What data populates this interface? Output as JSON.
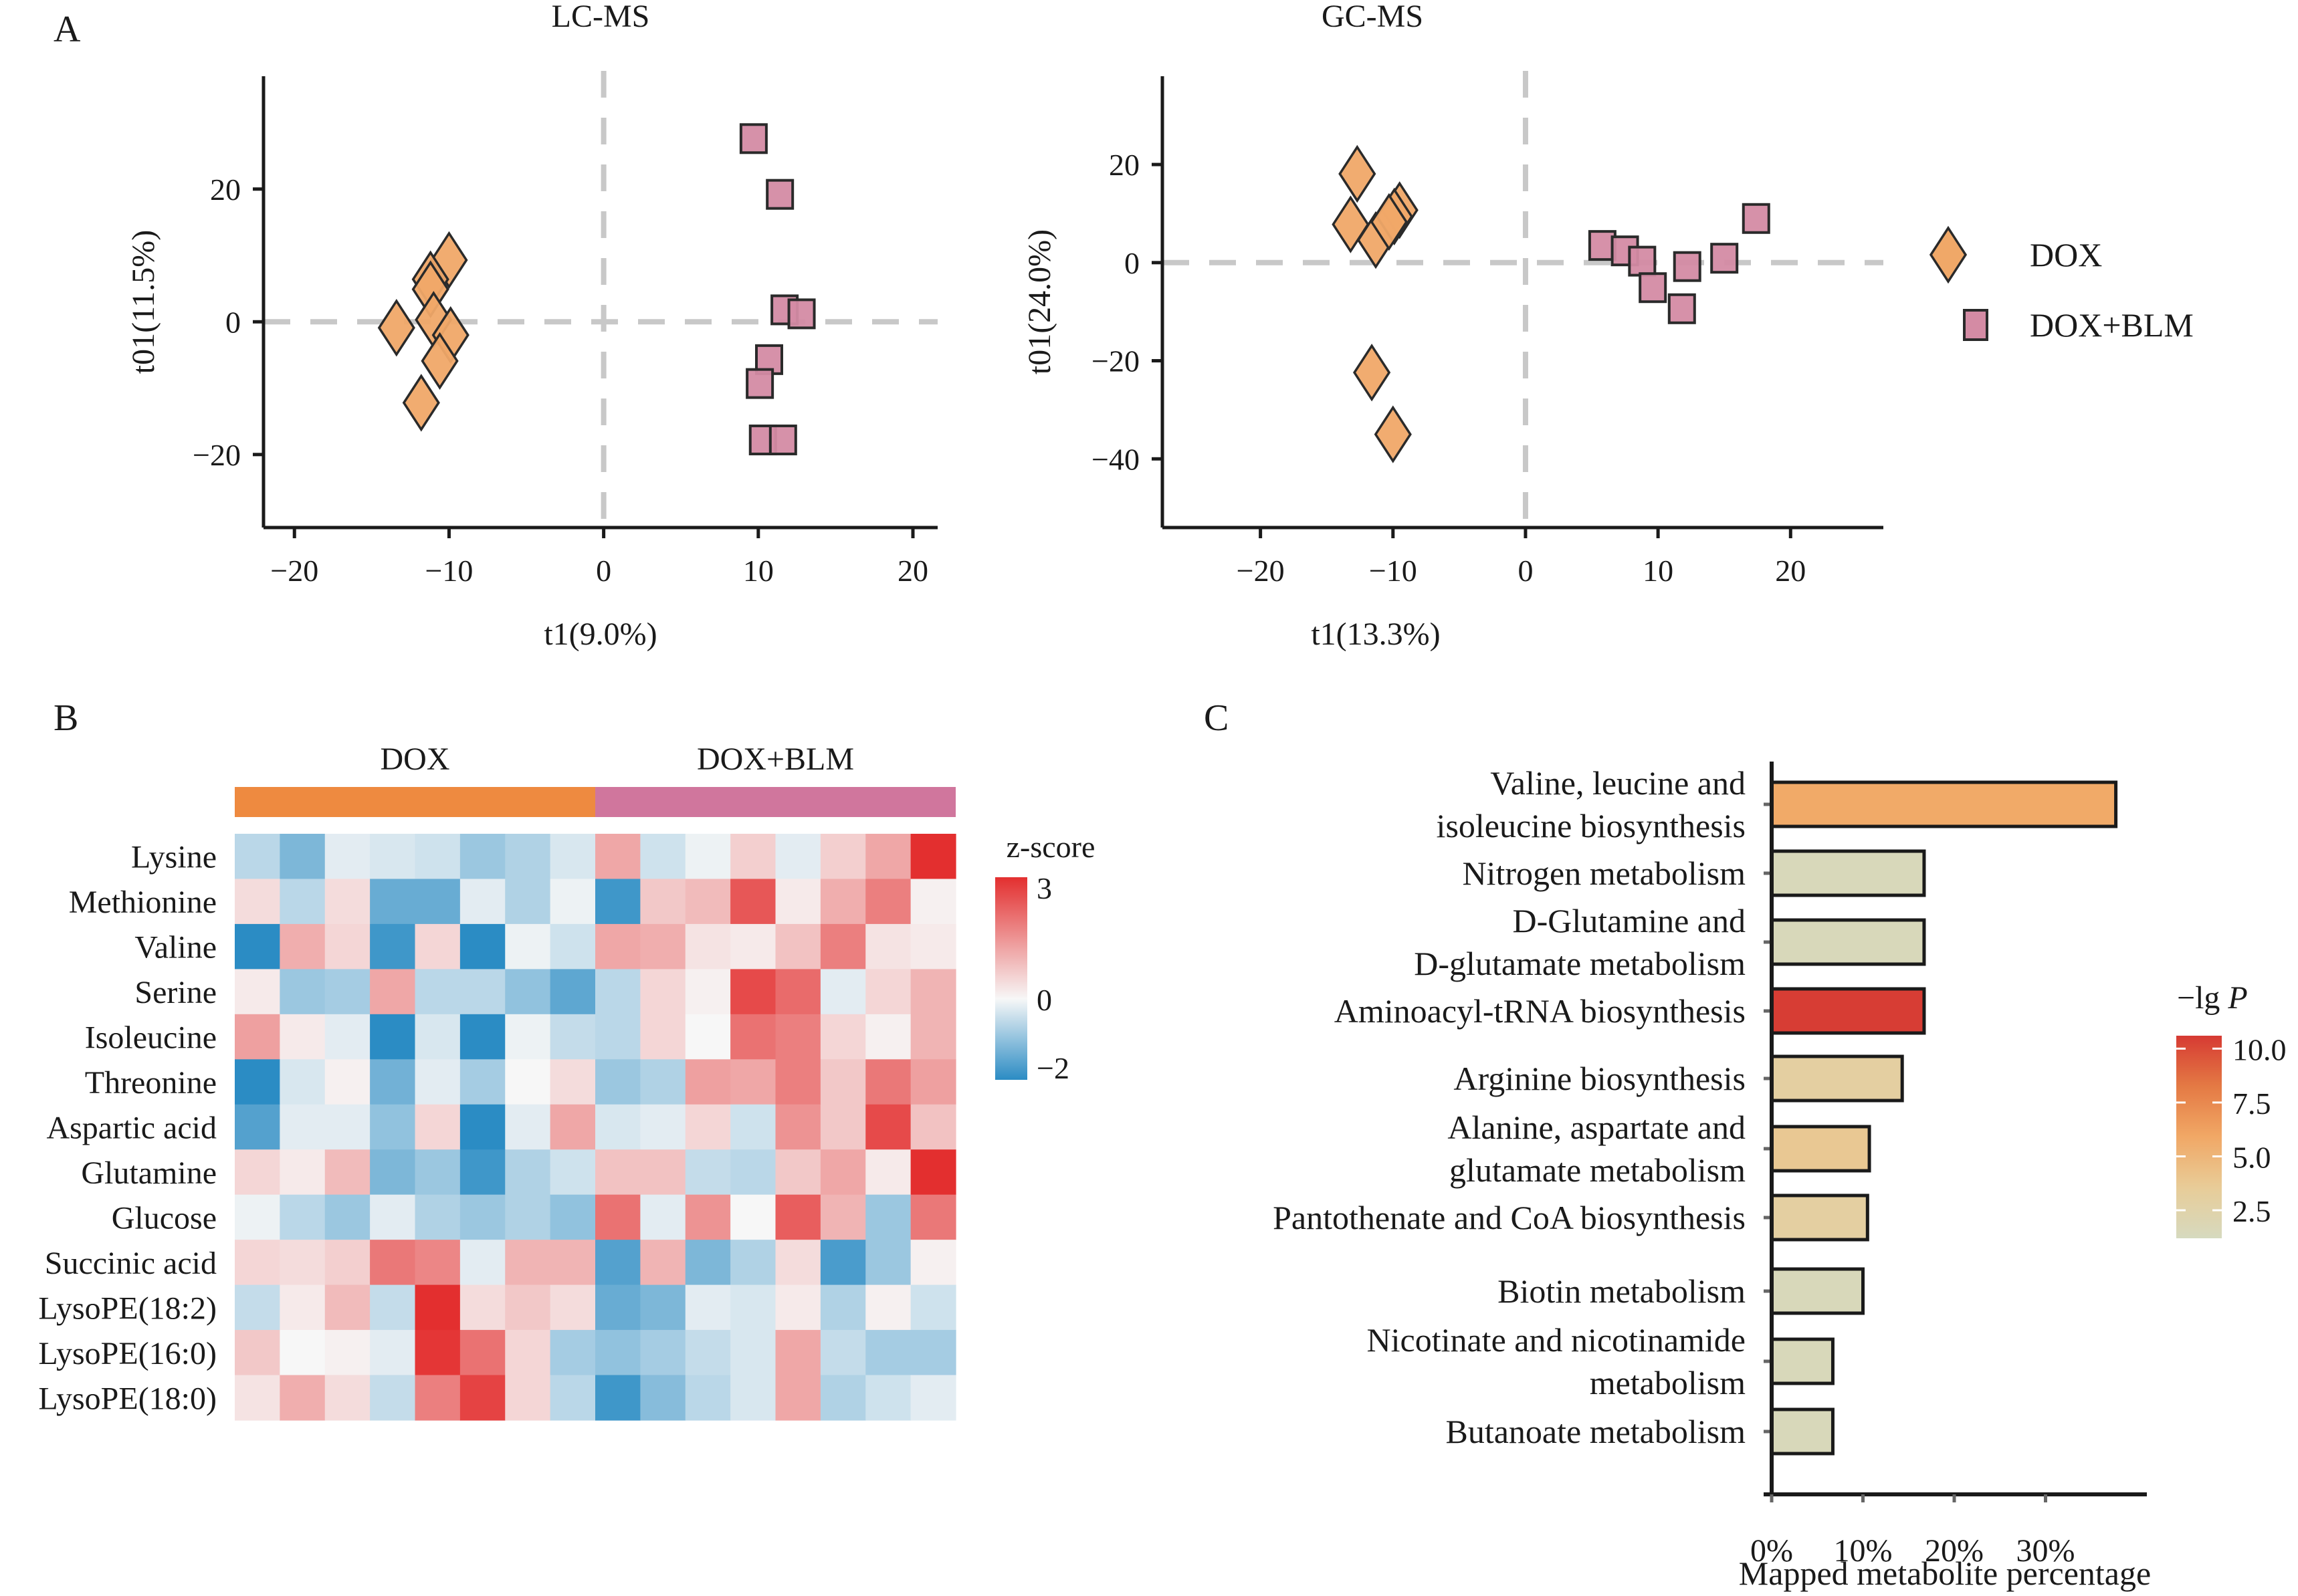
{
  "panels": {
    "A": "A",
    "B": "B",
    "C": "C"
  },
  "chart_data": [
    {
      "id": "lcms",
      "type": "scatter",
      "title": "LC-MS",
      "xlabel": "t1(9.0%)",
      "ylabel": "t01(11.5%)",
      "xlim": [
        -22,
        21.6
      ],
      "ylim": [
        -31,
        37
      ],
      "xticks": [
        -20,
        -10,
        0,
        10,
        20
      ],
      "yticks": [
        -20,
        0,
        20
      ],
      "xtick_labels": [
        "−20",
        "−10",
        "0",
        "10",
        "20"
      ],
      "ytick_labels": [
        "−20",
        "0",
        "20"
      ],
      "reference_lines": {
        "x": 0,
        "y": 0,
        "style": "dashed"
      },
      "series": [
        {
          "name": "DOX",
          "marker": "diamond",
          "color": "#f0a868",
          "points": [
            [
              -10.0,
              9.3
            ],
            [
              -11.2,
              6.4
            ],
            [
              -11.2,
              4.9
            ],
            [
              -13.4,
              -0.9
            ],
            [
              -11.0,
              0.3
            ],
            [
              -9.9,
              -2.0
            ],
            [
              -10.6,
              -5.9
            ],
            [
              -11.8,
              -12.2
            ]
          ]
        },
        {
          "name": "DOX+BLM",
          "marker": "square",
          "color": "#d48ba4",
          "points": [
            [
              9.7,
              27.6
            ],
            [
              11.4,
              19.2
            ],
            [
              11.7,
              1.8
            ],
            [
              12.8,
              1.2
            ],
            [
              10.7,
              -5.7
            ],
            [
              10.1,
              -9.3
            ],
            [
              10.3,
              -17.8
            ],
            [
              11.6,
              -17.8
            ]
          ]
        }
      ]
    },
    {
      "id": "gcms",
      "type": "scatter",
      "title": "GC-MS",
      "xlabel": "t1(13.3%)",
      "ylabel": "t01(24.0%)",
      "xlim": [
        -27.4,
        27.0
      ],
      "ylim": [
        -54,
        38
      ],
      "xticks": [
        -20,
        -10,
        0,
        10,
        20
      ],
      "yticks": [
        -40,
        -20,
        0,
        20
      ],
      "xtick_labels": [
        "−20",
        "−10",
        "0",
        "10",
        "20"
      ],
      "ytick_labels": [
        "−40",
        "−20",
        "0",
        "20"
      ],
      "reference_lines": {
        "x": 0,
        "y": 0,
        "style": "dashed"
      },
      "legend": {
        "position": "right",
        "entries": [
          {
            "label": "DOX",
            "marker": "diamond",
            "color": "#f0a868"
          },
          {
            "label": "DOX+BLM",
            "marker": "square",
            "color": "#d48ba4"
          }
        ]
      },
      "series": [
        {
          "name": "DOX",
          "marker": "diamond",
          "color": "#f0a868",
          "points": [
            [
              -12.7,
              18.1
            ],
            [
              -13.2,
              7.8
            ],
            [
              -11.3,
              4.6
            ],
            [
              -9.5,
              10.7
            ],
            [
              -9.9,
              9.4
            ],
            [
              -10.3,
              8.3
            ],
            [
              -11.6,
              -22.4
            ],
            [
              -10.0,
              -35.0
            ]
          ]
        },
        {
          "name": "DOX+BLM",
          "marker": "square",
          "color": "#d48ba4",
          "points": [
            [
              5.8,
              3.5
            ],
            [
              7.5,
              2.4
            ],
            [
              8.8,
              0.3
            ],
            [
              12.2,
              -0.8
            ],
            [
              9.6,
              -5.1
            ],
            [
              11.8,
              -9.4
            ],
            [
              15.0,
              0.9
            ],
            [
              17.4,
              9.0
            ]
          ]
        }
      ]
    },
    {
      "id": "heatmap",
      "type": "heatmap",
      "groups": [
        {
          "label": "DOX",
          "columns": 8,
          "color": "#ee8a40"
        },
        {
          "label": "DOX+BLM",
          "columns": 8,
          "color": "#d0769d"
        }
      ],
      "rows": [
        "Lysine",
        "Methionine",
        "Valine",
        "Serine",
        "Isoleucine",
        "Threonine",
        "Aspartic acid",
        "Glutamine",
        "Glucose",
        "Succinic acid",
        "LysoPE(18:2)",
        "LysoPE(16:0)",
        "LysoPE(18:0)"
      ],
      "values": [
        [
          -0.6,
          -1.2,
          -0.2,
          -0.3,
          -0.4,
          -0.9,
          -0.7,
          -0.3,
          1.2,
          -0.4,
          -0.1,
          0.6,
          -0.2,
          0.6,
          1.2,
          3.0
        ],
        [
          0.4,
          -0.6,
          0.4,
          -1.4,
          -1.4,
          -0.2,
          -0.7,
          -0.1,
          -1.8,
          0.7,
          0.9,
          2.4,
          0.2,
          1.1,
          1.8,
          0.1
        ],
        [
          -2.0,
          1.1,
          0.5,
          -1.8,
          0.5,
          -2.0,
          -0.1,
          -0.4,
          1.2,
          1.1,
          0.3,
          0.2,
          0.8,
          1.8,
          0.3,
          0.2
        ],
        [
          0.2,
          -0.9,
          -0.8,
          1.2,
          -0.6,
          -0.6,
          -1.0,
          -1.5,
          -0.6,
          0.5,
          0.1,
          2.6,
          2.1,
          -0.2,
          0.5,
          1.0
        ],
        [
          1.3,
          0.2,
          -0.2,
          -2.0,
          -0.3,
          -2.1,
          -0.1,
          -0.5,
          -0.6,
          0.5,
          0.0,
          2.0,
          1.8,
          0.5,
          0.1,
          1.0
        ],
        [
          -2.1,
          -0.3,
          0.1,
          -1.3,
          -0.2,
          -0.8,
          0.0,
          0.4,
          -0.9,
          -0.7,
          1.3,
          1.2,
          1.8,
          0.7,
          1.9,
          1.3
        ],
        [
          -1.6,
          -0.2,
          -0.2,
          -1.0,
          0.5,
          -2.2,
          -0.2,
          1.2,
          -0.3,
          -0.2,
          0.5,
          -0.4,
          1.5,
          0.7,
          2.6,
          0.8
        ],
        [
          0.5,
          0.2,
          0.9,
          -1.2,
          -0.9,
          -1.8,
          -0.7,
          -0.4,
          0.8,
          0.8,
          -0.5,
          -0.6,
          0.7,
          1.2,
          0.2,
          3.0
        ],
        [
          -0.1,
          -0.6,
          -0.9,
          -0.2,
          -0.7,
          -0.9,
          -0.7,
          -1.0,
          2.0,
          -0.2,
          1.5,
          0.0,
          2.3,
          1.0,
          -0.9,
          1.9
        ],
        [
          0.5,
          0.4,
          0.6,
          1.9,
          1.7,
          -0.2,
          1.0,
          1.0,
          -1.6,
          1.0,
          -1.2,
          -0.7,
          0.4,
          -1.7,
          -0.9,
          0.1
        ],
        [
          -0.5,
          0.2,
          0.9,
          -0.5,
          3.0,
          0.4,
          0.7,
          0.4,
          -1.4,
          -1.2,
          -0.2,
          -0.3,
          0.2,
          -0.7,
          0.1,
          -0.4
        ],
        [
          0.7,
          0.0,
          0.1,
          -0.2,
          2.9,
          2.0,
          0.5,
          -0.8,
          -1.0,
          -0.8,
          -0.5,
          -0.3,
          1.2,
          -0.5,
          -0.8,
          -0.8
        ],
        [
          0.3,
          1.1,
          0.4,
          -0.5,
          1.8,
          2.7,
          0.5,
          -0.6,
          -1.8,
          -1.1,
          -0.6,
          -0.3,
          1.2,
          -0.7,
          -0.4,
          -0.2
        ]
      ],
      "colorbar": {
        "title": "z-score",
        "range": [
          -2,
          3
        ],
        "ticks": [
          3,
          0,
          -2
        ],
        "tick_labels": [
          "3",
          "0",
          "−2"
        ],
        "colors": {
          "low": "#2b8cc4",
          "mid": "#f7f7f7",
          "high": "#e32f2f"
        }
      }
    },
    {
      "id": "pathway",
      "type": "bar",
      "orientation": "horizontal",
      "xlabel": "Mapped metabolite percentage",
      "xlim": [
        0,
        39
      ],
      "xticks": [
        0,
        10,
        20,
        30
      ],
      "xtick_labels": [
        "0%",
        "10%",
        "20%",
        "30%"
      ],
      "categories": [
        [
          "Valine, leucine and",
          "isoleucine biosynthesis"
        ],
        [
          "Nitrogen metabolism"
        ],
        [
          "D-Glutamine and",
          "D-glutamate metabolism"
        ],
        [
          "Aminoacyl-tRNA biosynthesis"
        ],
        [
          "Arginine biosynthesis"
        ],
        [
          "Alanine, aspartate and",
          "glutamate metabolism"
        ],
        [
          "Pantothenate and CoA biosynthesis"
        ],
        [
          "Biotin metabolism"
        ],
        [
          "Nicotinate and nicotinamide",
          "metabolism"
        ],
        [
          "Butanoate metabolism"
        ]
      ],
      "values": [
        37.7,
        16.7,
        16.7,
        16.7,
        14.3,
        10.7,
        10.5,
        10.0,
        6.7,
        6.7
      ],
      "color_values": [
        5.8,
        1.5,
        1.5,
        10.5,
        3.0,
        3.8,
        3.0,
        1.5,
        1.5,
        1.5
      ],
      "colorbar": {
        "title": "−lg",
        "title_italic": "P",
        "range": [
          1.2,
          10.6
        ],
        "ticks": [
          10.0,
          7.5,
          5.0,
          2.5
        ],
        "tick_labels": [
          "10.0",
          "7.5",
          "5.0",
          "2.5"
        ],
        "colors": [
          "#d6dabf",
          "#e8cc98",
          "#f1a866",
          "#e47a44",
          "#d63a33"
        ]
      }
    }
  ]
}
